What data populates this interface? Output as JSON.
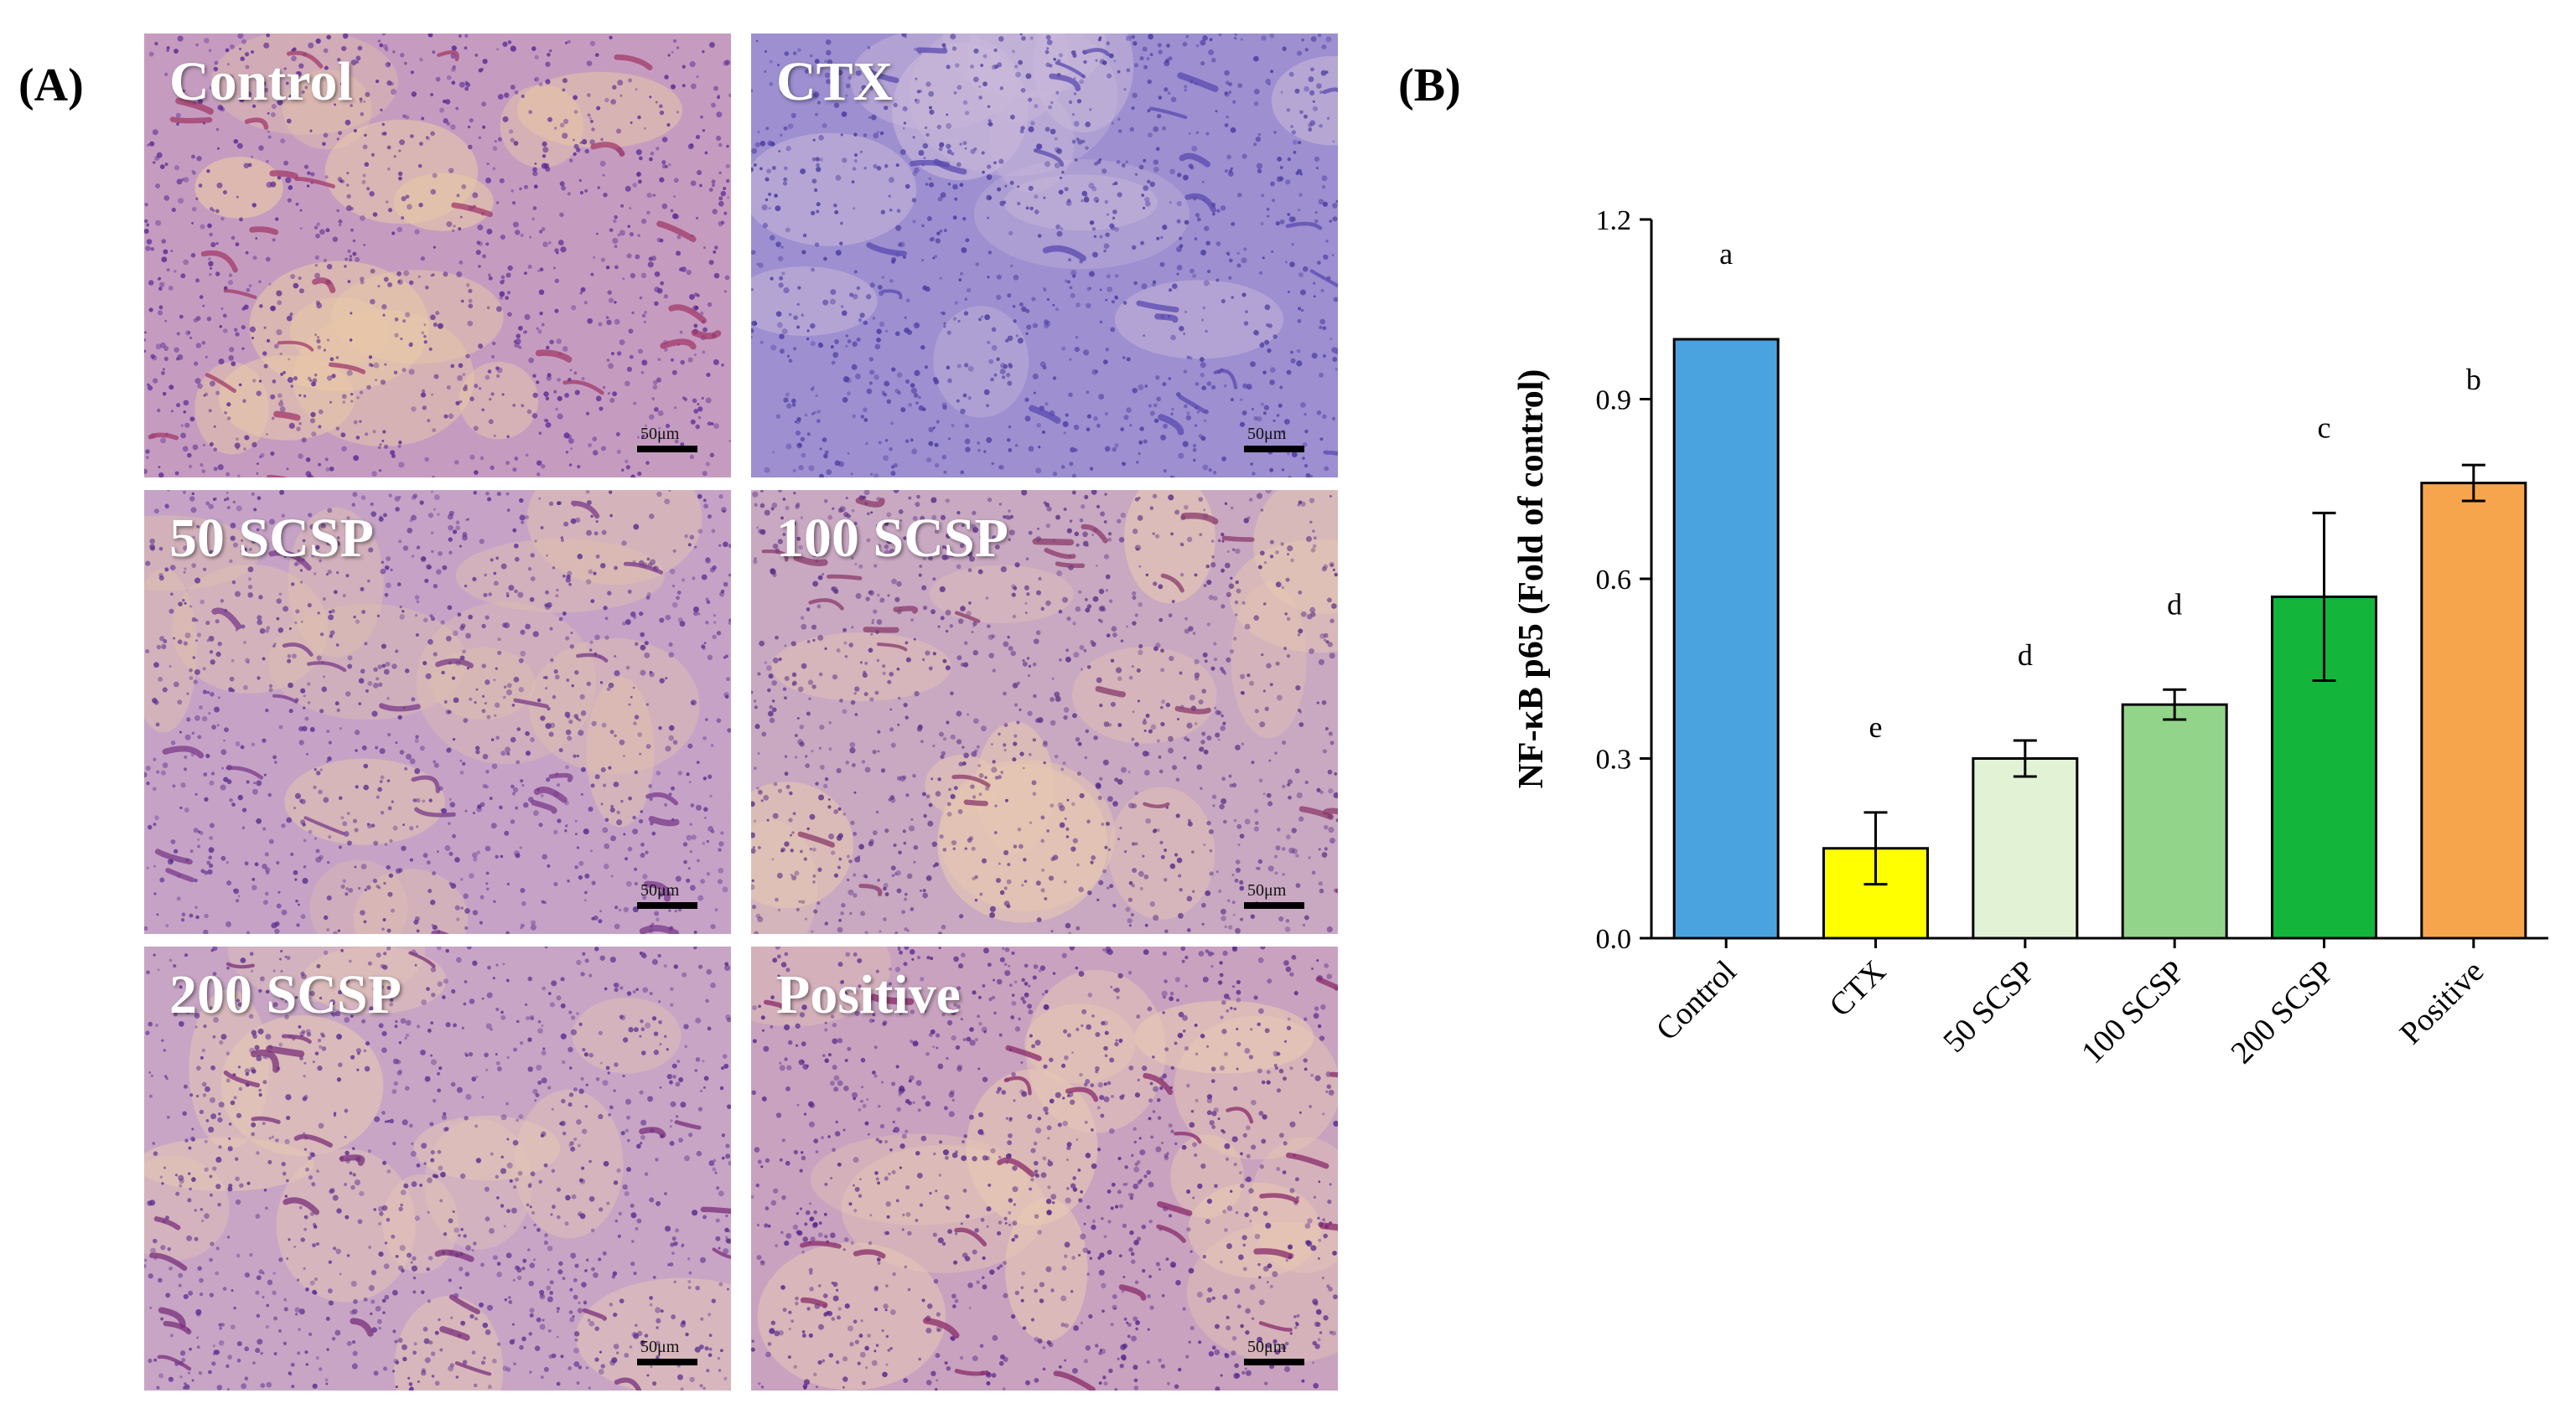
{
  "panel_a": {
    "label": "(A)",
    "scale_bar": "50μm",
    "images": [
      {
        "title": "Control",
        "base": "#c59cc0",
        "spot": "#5a2a93",
        "warm": "#e8c8a8",
        "accent": "#a23a6a"
      },
      {
        "title": "CTX",
        "base": "#9d8fd0",
        "spot": "#4a3aa0",
        "warm": "#c9b8d8",
        "accent": "#5b4ab0"
      },
      {
        "title": "50 SCSP",
        "base": "#c6a3c6",
        "spot": "#5a3090",
        "warm": "#e0c0b0",
        "accent": "#7a3a8a"
      },
      {
        "title": "100 SCSP",
        "base": "#c9a8c2",
        "spot": "#5d3088",
        "warm": "#e6c7b2",
        "accent": "#8a3a6a"
      },
      {
        "title": "200 SCSP",
        "base": "#c8a5c5",
        "spot": "#5a2f90",
        "warm": "#e5c6b5",
        "accent": "#7a2f7a"
      },
      {
        "title": "Positive",
        "base": "#c8a2bf",
        "spot": "#55278a",
        "warm": "#e8c9b4",
        "accent": "#8a2a6a"
      }
    ]
  },
  "panel_b": {
    "label": "(B)"
  },
  "chart_data": {
    "type": "bar",
    "categories": [
      "Control",
      "CTX",
      "50 SCSP",
      "100 SCSP",
      "200 SCSP",
      "Positive"
    ],
    "values": [
      1.0,
      0.15,
      0.3,
      0.39,
      0.57,
      0.76
    ],
    "errors": [
      0,
      0.06,
      0.03,
      0.025,
      0.14,
      0.03
    ],
    "significance_letters": [
      "a",
      "e",
      "d",
      "d",
      "c",
      "b"
    ],
    "colors": [
      "#4aa3df",
      "#ffff00",
      "#e2f2d5",
      "#92d58a",
      "#13b53b",
      "#f7a54c"
    ],
    "ylabel": "NF-κB p65 (Fold of control)",
    "xlabel": "",
    "ylim": [
      0,
      1.2
    ],
    "yticks": [
      "0.0",
      "0.3",
      "0.6",
      "0.9",
      "1.2"
    ],
    "grid": false
  }
}
